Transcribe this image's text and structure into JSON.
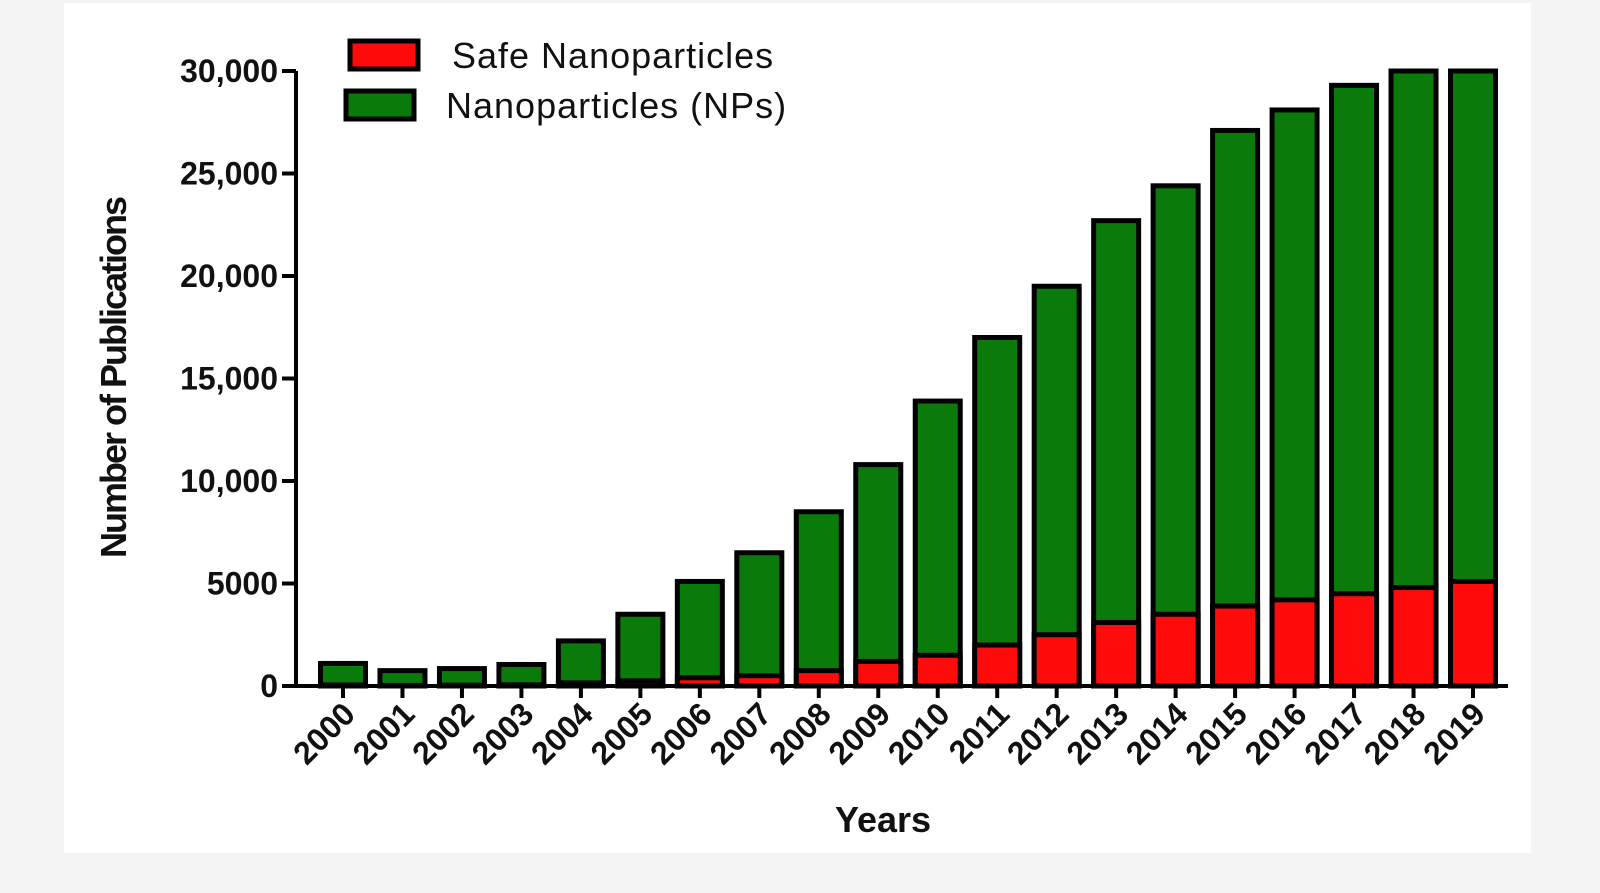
{
  "chart_data": {
    "type": "bar",
    "overlap": true,
    "xlabel": "Years",
    "ylabel": "Number of Publications",
    "categories": [
      "2000",
      "2001",
      "2002",
      "2003",
      "2004",
      "2005",
      "2006",
      "2007",
      "2008",
      "2009",
      "2010",
      "2011",
      "2012",
      "2013",
      "2014",
      "2015",
      "2016",
      "2017",
      "2018",
      "2019"
    ],
    "series": [
      {
        "name": "Nanoparticles (NPs)",
        "color": "#0a7a0a",
        "values": [
          1100,
          750,
          850,
          1050,
          2200,
          3500,
          5100,
          6500,
          8500,
          10800,
          13900,
          17000,
          19500,
          22700,
          24400,
          27100,
          28100,
          29300,
          30000,
          30000
        ]
      },
      {
        "name": "Safe Nanoparticles",
        "color": "#ff0b0b",
        "values": [
          50,
          30,
          40,
          60,
          150,
          250,
          400,
          500,
          750,
          1200,
          1500,
          2000,
          2500,
          3100,
          3500,
          3900,
          4200,
          4500,
          4800,
          5100
        ]
      }
    ],
    "legend_order": [
      1,
      0
    ],
    "ylim": [
      0,
      30000
    ],
    "yticks": [
      0,
      5000,
      {
        "value": 10000,
        "label": "10,000"
      },
      {
        "value": 15000,
        "label": "15,000"
      },
      {
        "value": 20000,
        "label": "20,000"
      },
      {
        "value": 25000,
        "label": "25,000"
      },
      {
        "value": 30000,
        "label": "30,000"
      }
    ],
    "legend": "upper left"
  }
}
